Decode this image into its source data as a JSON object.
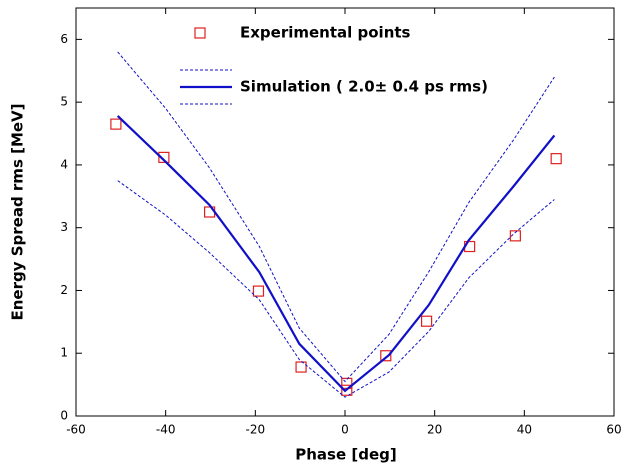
{
  "chart_data": {
    "type": "scatter",
    "xlabel": "Phase [deg]",
    "ylabel": "Energy Spread rms [MeV]",
    "xlim": [
      -60,
      60
    ],
    "ylim": [
      0,
      6.5
    ],
    "xticks": [
      -60,
      -40,
      -20,
      0,
      20,
      40,
      60
    ],
    "yticks": [
      0,
      1,
      2,
      3,
      4,
      5,
      6
    ],
    "series": [
      {
        "name": "Experimental points",
        "color": "#e02020",
        "marker": "square",
        "x": [
          -51.1,
          -40.4,
          -30.2,
          -19.3,
          -9.8,
          0.4,
          0.4,
          9.1,
          18.2,
          27.8,
          38,
          47.1
        ],
        "values": [
          4.65,
          4.12,
          3.25,
          1.99,
          0.78,
          0.52,
          0.41,
          0.96,
          1.51,
          2.7,
          2.87,
          4.1
        ]
      },
      {
        "name": "Simulation ( 2.0± 0.4 ps rms)",
        "color": "#1010c8",
        "marker": "line",
        "x": [
          -50.7,
          -40,
          -30.2,
          -19.1,
          -10.2,
          0,
          9.8,
          18.7,
          27.6,
          37.6,
          46.7
        ],
        "values": [
          4.78,
          4.05,
          3.36,
          2.29,
          1.15,
          0.4,
          0.97,
          1.77,
          2.8,
          3.66,
          4.47
        ],
        "upper": [
          5.8,
          4.9,
          3.95,
          2.7,
          1.4,
          0.55,
          1.3,
          2.3,
          3.4,
          4.4,
          5.4
        ],
        "lower": [
          3.75,
          3.2,
          2.6,
          1.85,
          0.9,
          0.3,
          0.7,
          1.35,
          2.2,
          2.9,
          3.45
        ]
      }
    ]
  }
}
